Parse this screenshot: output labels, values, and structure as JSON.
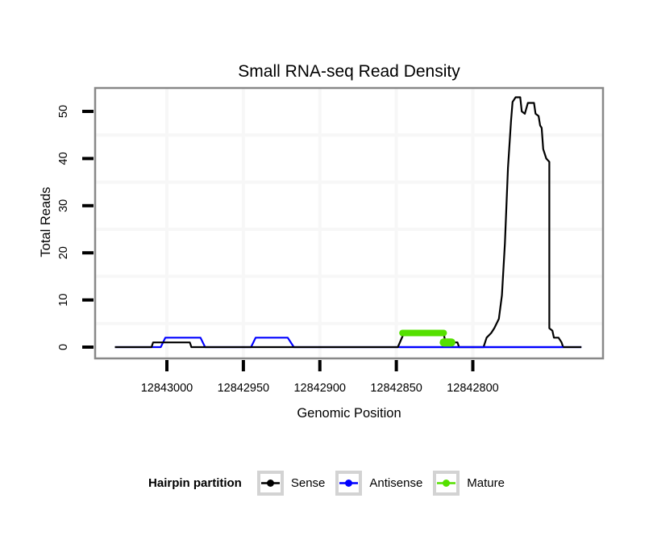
{
  "chart_data": {
    "type": "line",
    "title": "Small RNA-seq Read Density",
    "xlabel": "Genomic Position",
    "ylabel": "Total Reads",
    "x_axis_reversed": true,
    "x_domain": [
      12843047,
      12842715
    ],
    "ylim": [
      0,
      55
    ],
    "grid": true,
    "x_ticks": [
      12843000,
      12842950,
      12842900,
      12842850,
      12842800
    ],
    "x_tick_labels": [
      "12843000",
      "12842950",
      "12842900",
      "12842850",
      "12842800"
    ],
    "y_ticks": [
      0,
      10,
      20,
      30,
      40,
      50
    ],
    "y_tick_labels": [
      "0",
      "10",
      "20",
      "30",
      "40",
      "50"
    ],
    "y_minor_gridlines": [
      5,
      15,
      25,
      35,
      45
    ],
    "series": [
      {
        "name": "Antisense",
        "color": "#0000ff",
        "width": 2.2,
        "points": [
          [
            12843034,
            0
          ],
          [
            12843004,
            0
          ],
          [
            12843001,
            2
          ],
          [
            12842978,
            2
          ],
          [
            12842975,
            0
          ],
          [
            12842945,
            0
          ],
          [
            12842942,
            2
          ],
          [
            12842921,
            2
          ],
          [
            12842917,
            0
          ],
          [
            12842729,
            0
          ]
        ]
      },
      {
        "name": "Sense",
        "color": "#000000",
        "width": 2.2,
        "points": [
          [
            12843034,
            0
          ],
          [
            12843010,
            0
          ],
          [
            12843009,
            1
          ],
          [
            12842985,
            1
          ],
          [
            12842984,
            0
          ],
          [
            12842849,
            0
          ],
          [
            12842845,
            3
          ],
          [
            12842819,
            3
          ],
          [
            12842818,
            1
          ],
          [
            12842810,
            1
          ],
          [
            12842809,
            0
          ],
          [
            12842793,
            0
          ],
          [
            12842791,
            2
          ],
          [
            12842788,
            3
          ],
          [
            12842786,
            4
          ],
          [
            12842783,
            6
          ],
          [
            12842781,
            11
          ],
          [
            12842779,
            22
          ],
          [
            12842777,
            38
          ],
          [
            12842775,
            48
          ],
          [
            12842774,
            52
          ],
          [
            12842772,
            53
          ],
          [
            12842769,
            53
          ],
          [
            12842768,
            50
          ],
          [
            12842766,
            49.5
          ],
          [
            12842764,
            51.8
          ],
          [
            12842760,
            51.8
          ],
          [
            12842759,
            49.5
          ],
          [
            12842757,
            49
          ],
          [
            12842756,
            47
          ],
          [
            12842755,
            46.5
          ],
          [
            12842754,
            42
          ],
          [
            12842752,
            40
          ],
          [
            12842750,
            39.3
          ],
          [
            12842750,
            4
          ],
          [
            12842748,
            3.5
          ],
          [
            12842747,
            2
          ],
          [
            12842744,
            2
          ],
          [
            12842742,
            1
          ],
          [
            12842741,
            0
          ],
          [
            12842729,
            0
          ]
        ]
      },
      {
        "name": "Antisense baseline overlay",
        "color": "#0000ff",
        "width": 2.2,
        "points": [
          [
            12842848,
            0
          ],
          [
            12842741,
            0
          ]
        ]
      },
      {
        "name": "Mature",
        "color": "#55e000",
        "width": 8,
        "linecap": "round",
        "points": [
          [
            12842846,
            3
          ],
          [
            12842819,
            3
          ]
        ]
      },
      {
        "name": "Mature blob",
        "color": "#55e000",
        "width": 10,
        "linecap": "round",
        "points": [
          [
            12842819,
            1
          ],
          [
            12842814,
            1
          ]
        ]
      }
    ]
  },
  "legend": {
    "title": "Hairpin partition",
    "items": [
      {
        "label": "Sense",
        "color": "#000000"
      },
      {
        "label": "Antisense",
        "color": "#0000ff"
      },
      {
        "label": "Mature",
        "color": "#55e000"
      }
    ]
  },
  "colors": {
    "panel_border": "#888888",
    "gridline": "#f7f7f7",
    "tick": "#000000",
    "legend_box_border": "#d3d3d3"
  }
}
